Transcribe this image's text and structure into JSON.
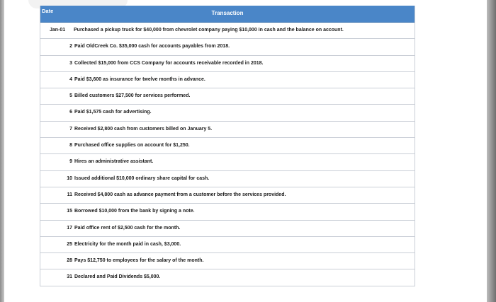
{
  "table": {
    "header": {
      "date": "Date",
      "transaction": "Transaction"
    },
    "rows": [
      {
        "date": "Jan-01",
        "text": "Purchased a pickup truck for $40,000 from chevrolet company paying $10,000 in cash and the balance on account."
      },
      {
        "date": "2",
        "text": "Paid OldCreek Co. $35,000 cash for accounts payables from 2018."
      },
      {
        "date": "3",
        "text": "Collected $15,000 from CCS Company for accounts receivable recorded in 2018."
      },
      {
        "date": "4",
        "text": "Paid $3,600 as insurance for twelve months in advance."
      },
      {
        "date": "5",
        "text": "Billed customers $27,500 for services performed."
      },
      {
        "date": "6",
        "text": "Paid $1,575 cash for advertising."
      },
      {
        "date": "7",
        "text": "Received $2,800 cash from customers billed on January 5."
      },
      {
        "date": "8",
        "text": "Purchased office supplies on account for $1,250."
      },
      {
        "date": "9",
        "text": "Hires an administrative assistant."
      },
      {
        "date": "10",
        "text": "Issued additional $10,000 ordinary share capital for cash."
      },
      {
        "date": "11",
        "text": "Received $4,800 cash as advance payment from a customer before the services provided."
      },
      {
        "date": "15",
        "text": "Borrowed $10,000 from the bank by signing a note."
      },
      {
        "date": "17",
        "text": "Paid office rent of $2,500 cash for the month."
      },
      {
        "date": "25",
        "text": "Electricity for the month paid in cash, $3,000."
      },
      {
        "date": "28",
        "text": "Pays $12,750 to employees for the salary of the month."
      },
      {
        "date": "31",
        "text": "Declared and Paid Dividends $5,000."
      }
    ]
  }
}
